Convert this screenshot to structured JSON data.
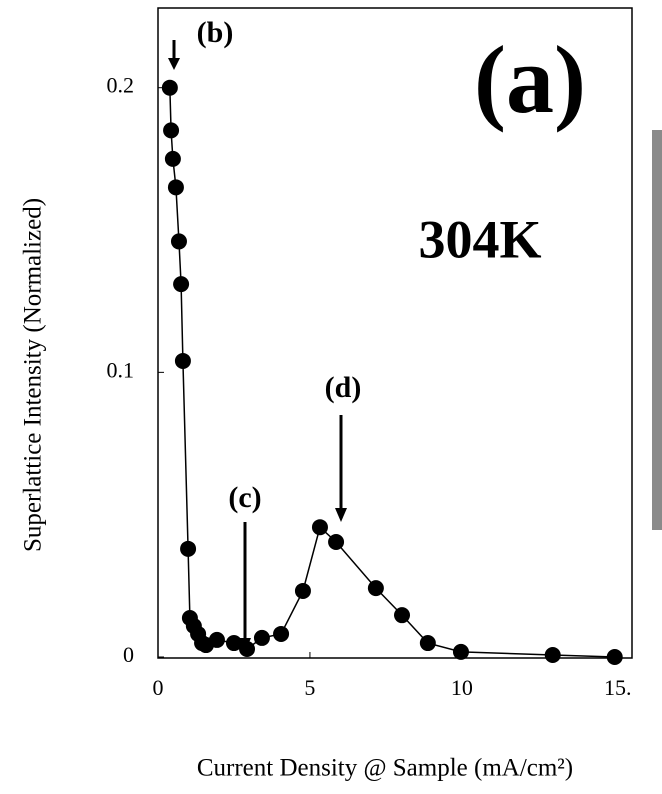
{
  "chart_data": {
    "type": "scatter-line",
    "x_label": "Current Density @ Sample (mA/cm²)",
    "y_label": "Superlattice Intensity (Normalized)",
    "annotations": [
      "(a)",
      "304K",
      "(b)",
      "(c)",
      "(d)"
    ],
    "x": [
      0.39,
      0.43,
      0.49,
      0.59,
      0.69,
      0.76,
      0.82,
      0.99,
      1.05,
      1.18,
      1.32,
      1.45,
      1.58,
      1.94,
      2.5,
      2.93,
      3.42,
      4.05,
      4.77,
      5.33,
      5.86,
      7.17,
      8.03,
      8.88,
      9.97,
      12.99,
      15.03
    ],
    "values": [
      0.2,
      0.185,
      0.175,
      0.165,
      0.146,
      0.131,
      0.104,
      0.038,
      0.0137,
      0.0109,
      0.0081,
      0.0049,
      0.0042,
      0.006,
      0.0049,
      0.0028,
      0.0067,
      0.0081,
      0.0232,
      0.0456,
      0.0404,
      0.0242,
      0.0147,
      0.0049,
      0.0018,
      0.0007,
      0
    ],
    "color": "#000000",
    "xlim": [
      0,
      15.5
    ],
    "xticks": [
      0,
      5,
      10,
      {
        "value": 15,
        "label": "15."
      }
    ],
    "ylim": [
      0,
      0.228
    ],
    "yticks": [
      0,
      0.1,
      0.2
    ]
  }
}
